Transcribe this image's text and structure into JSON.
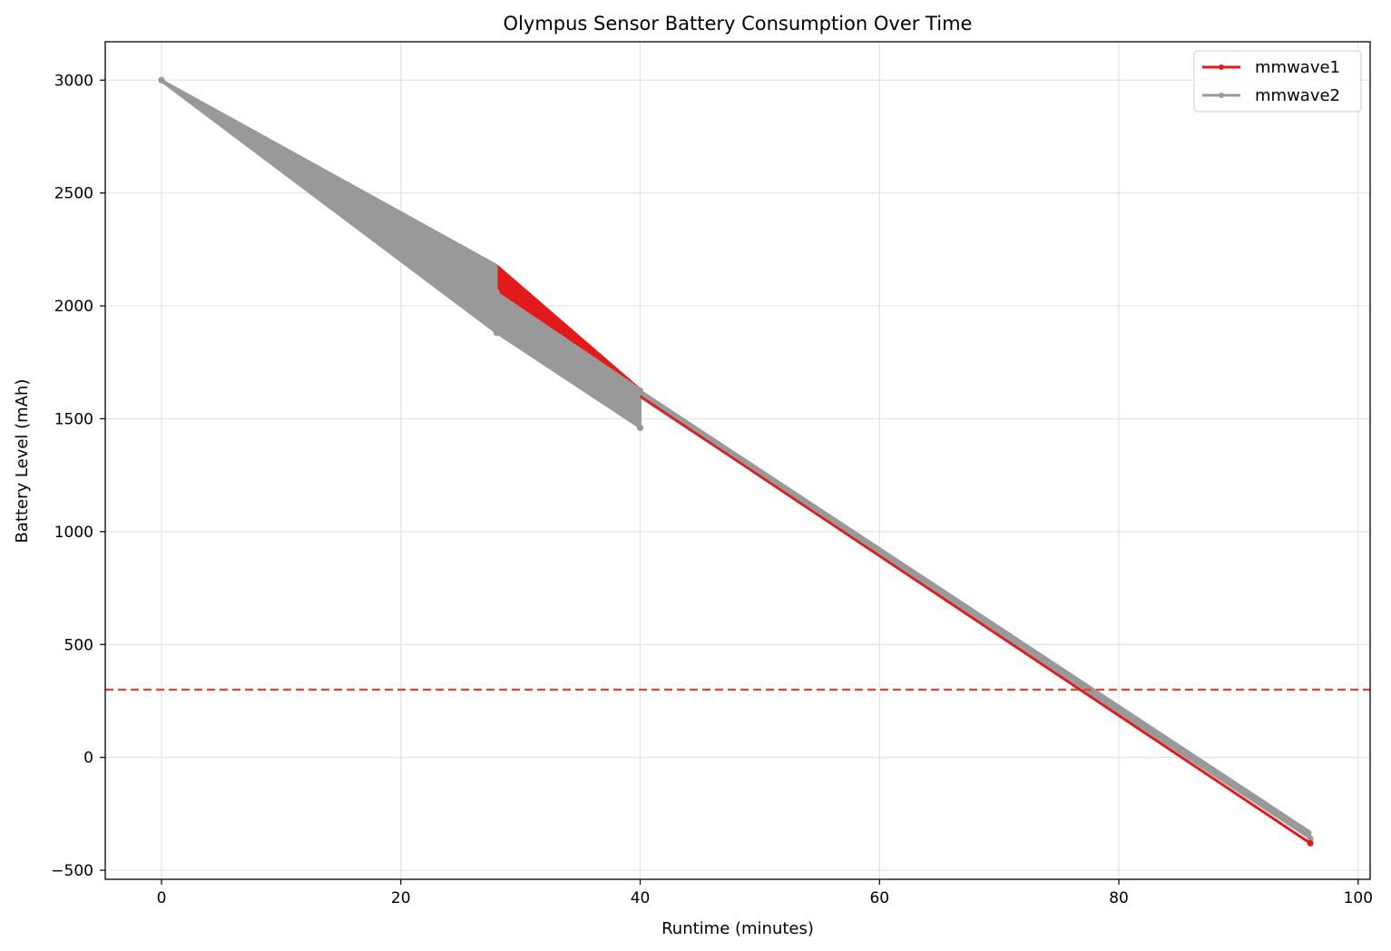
{
  "chart_data": {
    "type": "line",
    "title": "Olympus Sensor Battery Consumption Over Time",
    "xlabel": "Runtime (minutes)",
    "ylabel": "Battery Level (mAh)",
    "xlim": [
      -4.7,
      101.0
    ],
    "ylim": [
      -540,
      3170
    ],
    "xticks": [
      0,
      20,
      40,
      60,
      80,
      100
    ],
    "yticks": [
      -500,
      0,
      500,
      1000,
      1500,
      2000,
      2500,
      3000
    ],
    "grid": true,
    "legend_position": "top-right",
    "threshold": {
      "y": 300,
      "color": "#e8413c",
      "style": "dashed"
    },
    "series": [
      {
        "name": "mmwave1",
        "color": "#e31a1c",
        "segments": [
          {
            "x": [
              0,
              28,
              40
            ],
            "y_upper": [
              3000,
              2180,
              1630
            ],
            "y_lower": [
              3000,
              2060,
              1460
            ]
          },
          {
            "x": [
              40,
              96
            ],
            "y": [
              1600,
              -380
            ]
          }
        ]
      },
      {
        "name": "mmwave2",
        "color": "#999999",
        "segments": [
          {
            "x": [
              0,
              28
            ],
            "y_upper": [
              3000,
              2180
            ],
            "y_lower": [
              2995,
              1880
            ]
          },
          {
            "x": [
              28,
              40
            ],
            "y_upper": [
              2060,
              1630
            ],
            "y_lower": [
              1880,
              1460
            ]
          },
          {
            "x": [
              40,
              96
            ],
            "y_upper": [
              1625,
              -330
            ],
            "y_lower": [
              1595,
              -360
            ]
          }
        ]
      }
    ]
  }
}
